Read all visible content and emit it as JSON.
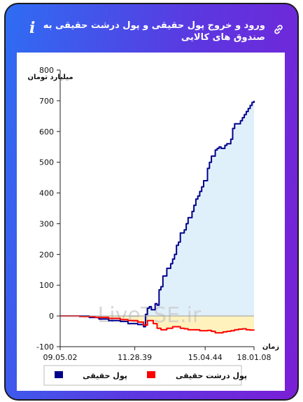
{
  "header": {
    "title": "ورود و خروج پول حقیقی و پول درشت حقیقی به صندوق های کالایی",
    "info_icon": "info-icon",
    "link_icon": "link-icon"
  },
  "chart_data": {
    "type": "line",
    "ylabel": "میلیارد تومان",
    "xlabel": "زمان",
    "ylim": [
      -100,
      800
    ],
    "yticks": [
      -100,
      0,
      100,
      200,
      300,
      400,
      500,
      600,
      700,
      800
    ],
    "xlim": [
      0,
      100
    ],
    "xticks": [
      {
        "pos": 0,
        "label": "09.05.02"
      },
      {
        "pos": 38.5,
        "label": "11.28.39"
      },
      {
        "pos": 74.8,
        "label": "15.04.44"
      },
      {
        "pos": 100,
        "label": "18.01.08"
      }
    ],
    "grid": false,
    "legend": "bottom",
    "watermark": "LiveTSE.ir",
    "series": [
      {
        "name": "پول حقیقی",
        "color": "#00008b",
        "fill": "#e0f0fb",
        "x": [
          0,
          6,
          8,
          15,
          20,
          25,
          31,
          35,
          40,
          43,
          44,
          45,
          46,
          47,
          49,
          50,
          51,
          52,
          53,
          55,
          57,
          58,
          59,
          60,
          61,
          62,
          64,
          65,
          66,
          68,
          69,
          70,
          71,
          72,
          73,
          74,
          76,
          77,
          78,
          80,
          81,
          82,
          83,
          85,
          86,
          88,
          89,
          90,
          93,
          94,
          95,
          96,
          97,
          98,
          99,
          100
        ],
        "y": [
          0,
          0,
          0,
          -5,
          -10,
          -15,
          -18,
          -25,
          -28,
          -35,
          5,
          25,
          30,
          20,
          40,
          35,
          85,
          95,
          130,
          155,
          170,
          185,
          200,
          230,
          240,
          270,
          280,
          300,
          320,
          340,
          360,
          380,
          390,
          405,
          420,
          440,
          480,
          500,
          520,
          540,
          545,
          550,
          545,
          555,
          560,
          575,
          610,
          625,
          635,
          645,
          655,
          665,
          675,
          685,
          695,
          700
        ]
      },
      {
        "name": "پول درشت حقیقی",
        "color": "#ff0000",
        "fill": "#fff2bd",
        "x": [
          0,
          10,
          18,
          25,
          31,
          35,
          40,
          43,
          44,
          45,
          47,
          48,
          50,
          52,
          55,
          58,
          60,
          62,
          64,
          66,
          68,
          70,
          72,
          74,
          76,
          78,
          80,
          82,
          84,
          86,
          88,
          90,
          92,
          94,
          96,
          98,
          100
        ],
        "y": [
          0,
          -2,
          -5,
          -8,
          -12,
          -15,
          -20,
          -30,
          -30,
          -15,
          -15,
          -25,
          -40,
          -45,
          -40,
          -35,
          -35,
          -40,
          -42,
          -45,
          -45,
          -45,
          -48,
          -48,
          -47,
          -50,
          -55,
          -55,
          -52,
          -50,
          -48,
          -45,
          -43,
          -42,
          -45,
          -46,
          -47
        ]
      }
    ]
  }
}
